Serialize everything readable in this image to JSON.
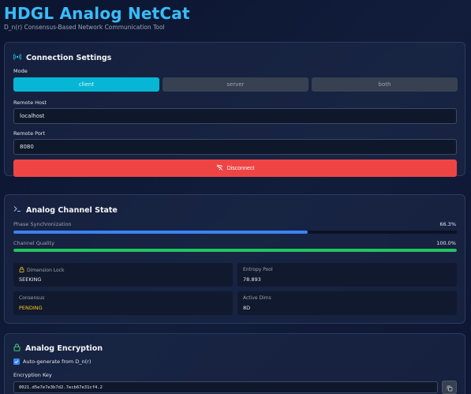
{
  "header": {
    "title": "HDGL Analog NetCat",
    "subtitle": "D_n(r) Consensus-Based Network Communication Tool"
  },
  "connection": {
    "title": "Connection Settings",
    "mode_label": "Mode",
    "modes": [
      "client",
      "server",
      "both"
    ],
    "selected_mode": "client",
    "remote_host_label": "Remote Host",
    "remote_host_value": "localhost",
    "remote_port_label": "Remote Port",
    "remote_port_value": "8080",
    "disconnect_label": "Disconnect"
  },
  "channel": {
    "title": "Analog Channel State",
    "phase_label": "Phase Synchronization",
    "phase_value": "66.3%",
    "phase_fraction": 0.663,
    "quality_label": "Channel Quality",
    "quality_value": "100.0%",
    "quality_fraction": 1.0,
    "stats": {
      "dimension_lock_label": "Dimension Lock",
      "dimension_lock_value": "SEEKING",
      "entropy_pool_label": "Entropy Pool",
      "entropy_pool_value": "78.893",
      "consensus_label": "Consensus",
      "consensus_value": "PENDING",
      "active_dims_label": "Active Dims",
      "active_dims_value": "8D"
    }
  },
  "encryption": {
    "title": "Analog Encryption",
    "auto_generate_label": "Auto-generate from D_n(r)",
    "auto_generate_checked": true,
    "key_label": "Encryption Key",
    "key_value": "0021.d5e7e7e3b7d2.7ecb67e31cf4.2"
  },
  "colors": {
    "accent": "#06b6d4",
    "title": "#38bdf8",
    "danger": "#ef4444",
    "phase_bar": "#3b82f6",
    "quality_bar": "#22c55e",
    "warning": "#facc15"
  },
  "icons": {
    "connection": "broadcast-icon",
    "channel": "terminal-icon",
    "encryption": "lock-icon",
    "dimension_lock": "lock-icon",
    "disconnect": "wifi-off-icon",
    "copy": "copy-icon"
  }
}
